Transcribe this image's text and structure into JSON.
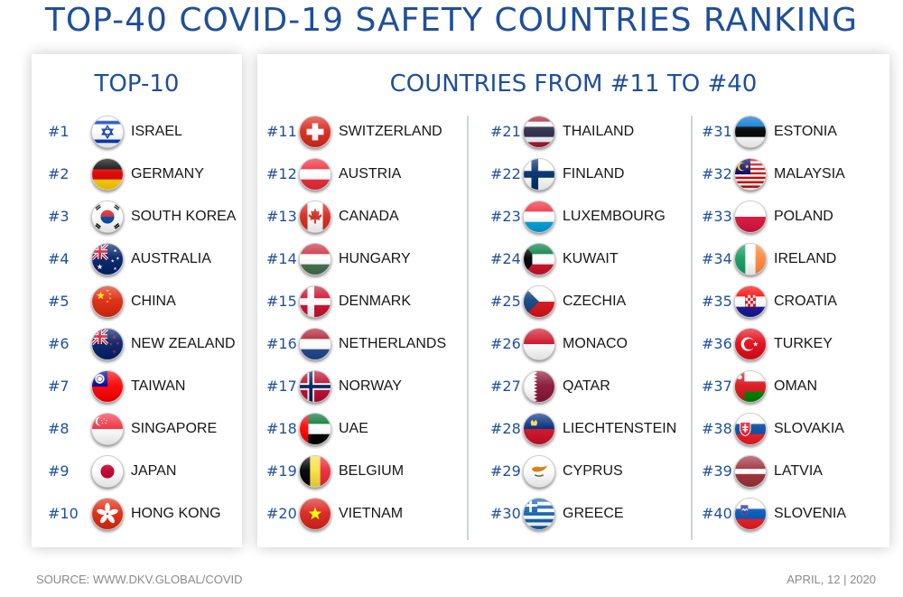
{
  "title": "TOP-40 COVID-19 SAFETY COUNTRIES RANKING",
  "left_panel": {
    "title": "TOP-10",
    "entries": [
      {
        "rank": "#1",
        "country": "ISRAEL",
        "flag": "israel-flag-icon"
      },
      {
        "rank": "#2",
        "country": "GERMANY",
        "flag": "germany-flag-icon"
      },
      {
        "rank": "#3",
        "country": "SOUTH KOREA",
        "flag": "south-korea-flag-icon"
      },
      {
        "rank": "#4",
        "country": "AUSTRALIA",
        "flag": "australia-flag-icon"
      },
      {
        "rank": "#5",
        "country": "CHINA",
        "flag": "china-flag-icon"
      },
      {
        "rank": "#6",
        "country": "NEW ZEALAND",
        "flag": "new-zealand-flag-icon"
      },
      {
        "rank": "#7",
        "country": "TAIWAN",
        "flag": "taiwan-flag-icon"
      },
      {
        "rank": "#8",
        "country": "SINGAPORE",
        "flag": "singapore-flag-icon"
      },
      {
        "rank": "#9",
        "country": "JAPAN",
        "flag": "japan-flag-icon"
      },
      {
        "rank": "#10",
        "country": "HONG KONG",
        "flag": "hong-kong-flag-icon"
      }
    ]
  },
  "right_panel": {
    "title": "COUNTRIES FROM #11 TO #40",
    "columns": [
      [
        {
          "rank": "#11",
          "country": "SWITZERLAND",
          "flag": "switzerland-flag-icon"
        },
        {
          "rank": "#12",
          "country": "AUSTRIA",
          "flag": "austria-flag-icon"
        },
        {
          "rank": "#13",
          "country": "CANADA",
          "flag": "canada-flag-icon"
        },
        {
          "rank": "#14",
          "country": "HUNGARY",
          "flag": "hungary-flag-icon"
        },
        {
          "rank": "#15",
          "country": "DENMARK",
          "flag": "denmark-flag-icon"
        },
        {
          "rank": "#16",
          "country": "NETHERLANDS",
          "flag": "netherlands-flag-icon"
        },
        {
          "rank": "#17",
          "country": "NORWAY",
          "flag": "norway-flag-icon"
        },
        {
          "rank": "#18",
          "country": "UAE",
          "flag": "uae-flag-icon"
        },
        {
          "rank": "#19",
          "country": "BELGIUM",
          "flag": "belgium-flag-icon"
        },
        {
          "rank": "#20",
          "country": "VIETNAM",
          "flag": "vietnam-flag-icon"
        }
      ],
      [
        {
          "rank": "#21",
          "country": "THAILAND",
          "flag": "thailand-flag-icon"
        },
        {
          "rank": "#22",
          "country": "FINLAND",
          "flag": "finland-flag-icon"
        },
        {
          "rank": "#23",
          "country": "LUXEMBOURG",
          "flag": "luxembourg-flag-icon"
        },
        {
          "rank": "#24",
          "country": "KUWAIT",
          "flag": "kuwait-flag-icon"
        },
        {
          "rank": "#25",
          "country": "CZECHIA",
          "flag": "czechia-flag-icon"
        },
        {
          "rank": "#26",
          "country": "MONACO",
          "flag": "monaco-flag-icon"
        },
        {
          "rank": "#27",
          "country": "QATAR",
          "flag": "qatar-flag-icon"
        },
        {
          "rank": "#28",
          "country": "LIECHTENSTEIN",
          "flag": "liechtenstein-flag-icon"
        },
        {
          "rank": "#29",
          "country": "CYPRUS",
          "flag": "cyprus-flag-icon"
        },
        {
          "rank": "#30",
          "country": "GREECE",
          "flag": "greece-flag-icon"
        }
      ],
      [
        {
          "rank": "#31",
          "country": "ESTONIA",
          "flag": "estonia-flag-icon"
        },
        {
          "rank": "#32",
          "country": "MALAYSIA",
          "flag": "malaysia-flag-icon"
        },
        {
          "rank": "#33",
          "country": "POLAND",
          "flag": "poland-flag-icon"
        },
        {
          "rank": "#34",
          "country": "IRELAND",
          "flag": "ireland-flag-icon"
        },
        {
          "rank": "#35",
          "country": "CROATIA",
          "flag": "croatia-flag-icon"
        },
        {
          "rank": "#36",
          "country": "TURKEY",
          "flag": "turkey-flag-icon"
        },
        {
          "rank": "#37",
          "country": "OMAN",
          "flag": "oman-flag-icon"
        },
        {
          "rank": "#38",
          "country": "SLOVAKIA",
          "flag": "slovakia-flag-icon"
        },
        {
          "rank": "#39",
          "country": "LATVIA",
          "flag": "latvia-flag-icon"
        },
        {
          "rank": "#40",
          "country": "SLOVENIA",
          "flag": "slovenia-flag-icon"
        }
      ]
    ]
  },
  "footer": {
    "source": "SOURCE: WWW.DKV.GLOBAL/COVID",
    "date": "APRIL, 12 | 2020"
  },
  "colors": {
    "title_blue": "#1f4f9a",
    "divider": "#cfd3d8",
    "footer_gray": "#8a8a8a"
  }
}
